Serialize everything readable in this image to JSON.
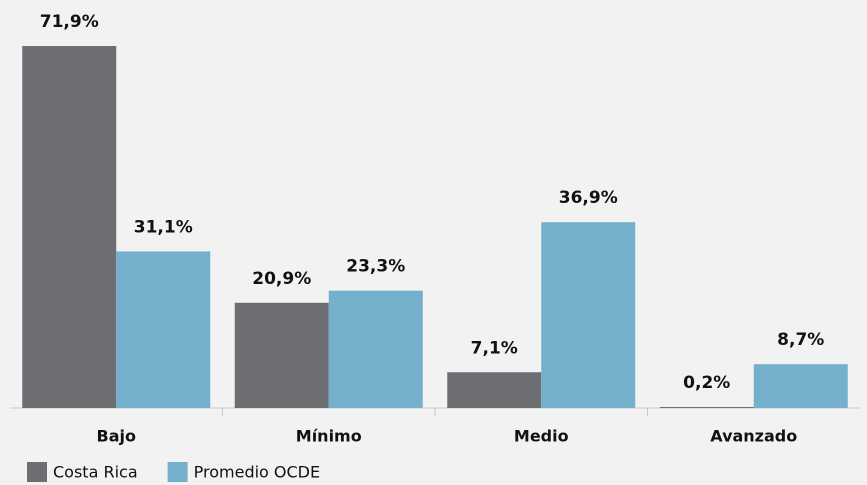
{
  "chart_data": {
    "type": "bar",
    "categories": [
      "Bajo",
      "Mínimo",
      "Medio",
      "Avanzado"
    ],
    "series": [
      {
        "name": "Costa Rica",
        "color": "#6d6e71",
        "values": [
          71.9,
          20.9,
          7.1,
          0.2
        ],
        "value_labels": [
          "71,9%",
          "20,9%",
          "7,1%",
          "0,2%"
        ]
      },
      {
        "name": "Promedio OCDE",
        "color": "#74b0cb",
        "values": [
          31.1,
          23.3,
          36.9,
          8.7
        ],
        "value_labels": [
          "31,1%",
          "23,3%",
          "36,9%",
          "8,7%"
        ]
      }
    ]
  }
}
